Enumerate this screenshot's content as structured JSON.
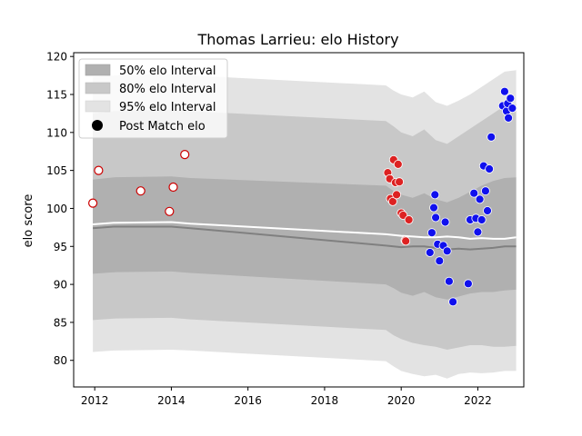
{
  "chart_data": {
    "type": "scatter",
    "title": "Thomas Larrieu: elo History",
    "xlabel": "",
    "ylabel": "elo score",
    "xlim": [
      2011.45,
      2023.2
    ],
    "ylim": [
      76.5,
      120.5
    ],
    "xticks": [
      2012,
      2014,
      2016,
      2018,
      2020,
      2022
    ],
    "yticks": [
      80,
      85,
      90,
      95,
      100,
      105,
      110,
      115,
      120
    ],
    "legend_position": "top-left",
    "grid": false,
    "legend": {
      "band50": "50% elo Interval",
      "band80": "80% elo Interval",
      "band95": "95% elo Interval",
      "points": "Post Match elo"
    },
    "colors": {
      "band50": "#b0b0b0",
      "band80": "#c8c8c8",
      "band95": "#e3e3e3",
      "mean_line": "#ffffff",
      "median_line": "#808080",
      "early_points": "#ffffff",
      "early_edge": "#cc0000",
      "mid_points": "#dd2222",
      "late_points": "#1010ee"
    },
    "bands": {
      "x": [
        2011.95,
        2012.5,
        2014.0,
        2014.5,
        2019.6,
        2019.8,
        2020.0,
        2020.3,
        2020.6,
        2020.9,
        2021.2,
        2021.5,
        2021.8,
        2022.1,
        2022.4,
        2022.7,
        2023.0
      ],
      "p95_hi": [
        117.3,
        117.5,
        117.7,
        117.5,
        116.2,
        115.5,
        115.0,
        114.6,
        115.4,
        114.0,
        113.5,
        114.2,
        115.0,
        116.0,
        117.0,
        118.0,
        118.2
      ],
      "p80_hi": [
        112.5,
        112.8,
        113.0,
        112.8,
        111.5,
        110.8,
        110.0,
        109.5,
        110.4,
        109.0,
        108.5,
        109.5,
        110.5,
        111.5,
        112.5,
        113.5,
        113.7
      ],
      "p50_hi": [
        103.8,
        104.1,
        104.2,
        104.0,
        103.0,
        102.3,
        101.8,
        101.4,
        102.0,
        101.2,
        100.8,
        101.4,
        102.2,
        103.0,
        103.6,
        104.0,
        104.1
      ],
      "p50_lo": [
        91.4,
        91.6,
        91.7,
        91.5,
        90.0,
        89.5,
        88.9,
        88.5,
        89.0,
        88.3,
        88.0,
        88.4,
        88.8,
        89.0,
        89.0,
        89.2,
        89.3
      ],
      "p80_lo": [
        85.3,
        85.5,
        85.6,
        85.4,
        84.0,
        83.3,
        82.8,
        82.3,
        82.0,
        81.8,
        81.4,
        81.7,
        82.0,
        82.0,
        81.8,
        81.8,
        81.9
      ],
      "p95_lo": [
        81.1,
        81.3,
        81.4,
        81.3,
        79.9,
        79.2,
        78.6,
        78.2,
        77.9,
        78.1,
        77.6,
        78.2,
        78.4,
        78.3,
        78.4,
        78.6,
        78.6
      ],
      "mean": [
        97.9,
        98.1,
        98.2,
        98.0,
        96.6,
        96.5,
        96.4,
        96.3,
        96.2,
        96.2,
        96.3,
        96.2,
        96.0,
        96.1,
        96.0,
        96.0,
        96.2
      ],
      "median": [
        97.4,
        97.6,
        97.6,
        97.4,
        95.1,
        95.0,
        94.9,
        95.0,
        95.0,
        94.8,
        94.6,
        94.7,
        94.6,
        94.7,
        94.8,
        95.0,
        95.0
      ]
    },
    "series": [
      {
        "group": "early",
        "x": [
          2011.95,
          2012.1,
          2013.2,
          2013.95,
          2014.05,
          2014.35
        ],
        "y": [
          100.7,
          105.0,
          102.3,
          99.6,
          102.8,
          107.1
        ]
      },
      {
        "group": "mid",
        "x": [
          2019.65,
          2019.7,
          2019.72,
          2019.78,
          2019.8,
          2019.85,
          2019.88,
          2019.92,
          2019.95,
          2020.0,
          2020.05,
          2020.1,
          2020.12,
          2020.2
        ],
        "y": [
          104.7,
          103.9,
          101.3,
          100.9,
          106.4,
          103.4,
          101.8,
          105.8,
          103.5,
          99.4,
          99.1,
          95.8,
          95.7,
          98.5
        ]
      },
      {
        "group": "late",
        "x": [
          2020.75,
          2020.8,
          2020.85,
          2020.88,
          2020.9,
          2020.95,
          2021.0,
          2021.1,
          2021.15,
          2021.2,
          2021.25,
          2021.35,
          2021.75,
          2021.8,
          2021.9,
          2021.95,
          2022.0,
          2022.05,
          2022.1,
          2022.15,
          2022.2,
          2022.25,
          2022.3,
          2022.35,
          2022.65,
          2022.7,
          2022.75,
          2022.78,
          2022.8,
          2022.85,
          2022.9
        ],
        "y": [
          94.2,
          96.8,
          100.1,
          101.8,
          98.8,
          95.3,
          93.1,
          95.1,
          98.2,
          94.4,
          90.4,
          87.7,
          90.1,
          98.5,
          102.0,
          98.7,
          96.9,
          101.2,
          98.5,
          105.6,
          102.3,
          99.7,
          105.2,
          109.4,
          113.5,
          115.4,
          112.8,
          113.8,
          111.9,
          114.5,
          113.2
        ]
      }
    ]
  }
}
